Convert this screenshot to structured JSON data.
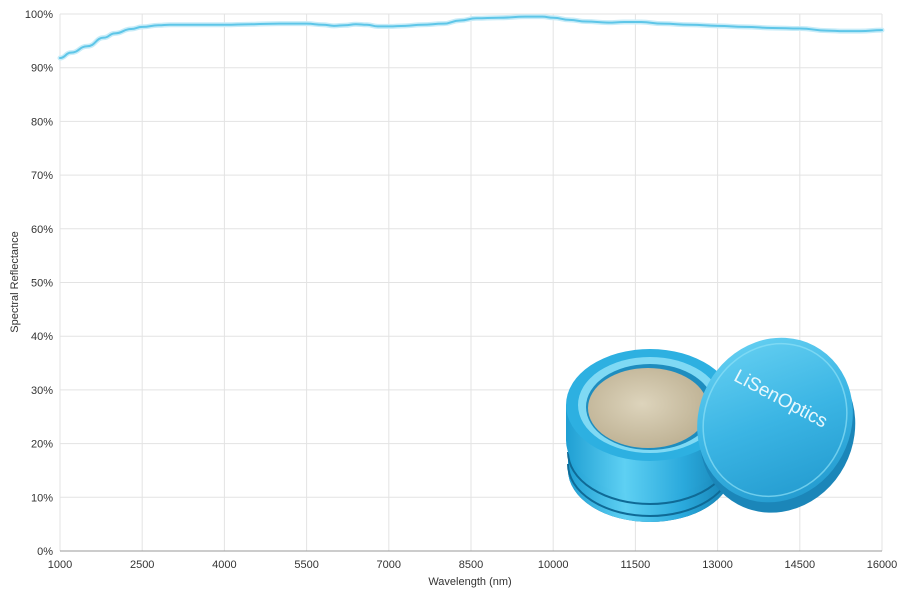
{
  "chart_data": {
    "type": "line",
    "title": "",
    "xlabel": "Wavelength (nm)",
    "ylabel": "Spectral Reflectance",
    "xlim": [
      1000,
      16000
    ],
    "ylim": [
      0,
      100
    ],
    "grid": true,
    "line_color": "#5ec6e8",
    "band_color": "#c8ecf8",
    "x_ticks": [
      1000,
      2500,
      4000,
      5500,
      7000,
      8500,
      10000,
      11500,
      13000,
      14500,
      16000
    ],
    "x_tick_labels": [
      "1000",
      "2500",
      "4000",
      "5500",
      "7000",
      "8500",
      "10000",
      "11500",
      "13000",
      "14500",
      "16000"
    ],
    "y_ticks": [
      0,
      10,
      20,
      30,
      40,
      50,
      60,
      70,
      80,
      90,
      100
    ],
    "y_tick_labels": [
      "0%",
      "10%",
      "20%",
      "30%",
      "40%",
      "50%",
      "60%",
      "70%",
      "80%",
      "90%",
      "100%"
    ],
    "series": [
      {
        "x": [
          1000,
          1200,
          1500,
          1800,
          2000,
          2300,
          2500,
          2800,
          3000,
          3500,
          4000,
          4500,
          5000,
          5500,
          5800,
          6000,
          6200,
          6400,
          6600,
          6800,
          7000,
          7300,
          7600,
          8000,
          8300,
          8600,
          9000,
          9500,
          9800,
          10000,
          10300,
          10600,
          11000,
          11300,
          11600,
          12000,
          12500,
          13000,
          13500,
          14000,
          14500,
          15000,
          15300,
          15600,
          16000
        ],
        "y": [
          91.8,
          92.8,
          94.0,
          95.6,
          96.4,
          97.2,
          97.6,
          97.9,
          98.0,
          98.0,
          98.0,
          98.1,
          98.2,
          98.2,
          98.0,
          97.8,
          97.9,
          98.1,
          98.0,
          97.7,
          97.7,
          97.8,
          98.0,
          98.2,
          98.8,
          99.2,
          99.3,
          99.5,
          99.5,
          99.3,
          98.9,
          98.6,
          98.4,
          98.5,
          98.5,
          98.2,
          98.0,
          97.8,
          97.6,
          97.4,
          97.3,
          96.9,
          96.8,
          96.8,
          97.0
        ]
      }
    ]
  },
  "product_image": {
    "brand": "LiSenOptics",
    "cap_color": "#3fb8e6",
    "sample_color": "#d6cbb0"
  }
}
